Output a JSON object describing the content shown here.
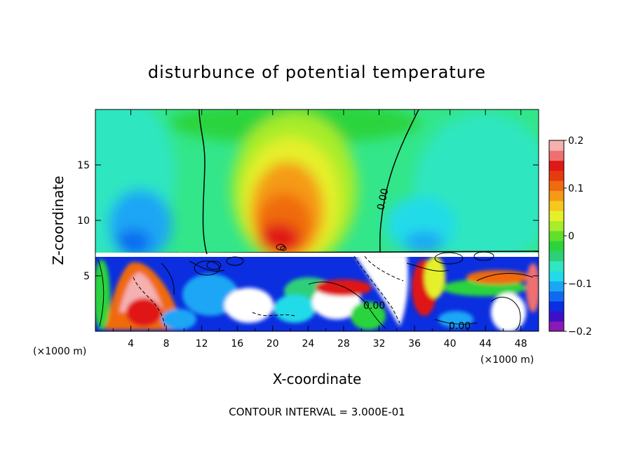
{
  "chart_data": {
    "type": "heatmap",
    "title": "disturbunce of potential temperature",
    "xlabel": "X-coordinate",
    "ylabel": "Z-coordinate",
    "x_unit_label": "(×1000 m)",
    "x_unit_label_right": "(×1000 m)",
    "xlim": [
      0,
      50
    ],
    "ylim": [
      0,
      20
    ],
    "x_ticks": [
      4,
      8,
      12,
      16,
      20,
      24,
      28,
      32,
      36,
      40,
      44,
      48
    ],
    "x_tick_labels": [
      "4",
      "8",
      "12",
      "16",
      "20",
      "24",
      "28",
      "32",
      "36",
      "40",
      "44",
      "48"
    ],
    "y_ticks": [
      5,
      10,
      15
    ],
    "y_tick_labels": [
      "5",
      "10",
      "15"
    ],
    "colorbar": {
      "range": [
        -0.2,
        0.2
      ],
      "ticks": [
        0.2,
        0.1,
        0,
        -0.1,
        -0.2
      ],
      "tick_labels": [
        "0.2",
        "0.1",
        "0",
        "−0.1",
        "−0.2"
      ],
      "colors": [
        "#8a1ab5",
        "#3d10c8",
        "#0a2ee0",
        "#0f6af0",
        "#1aa6f5",
        "#22dbe8",
        "#2ee6c0",
        "#2ecf7a",
        "#2bd43c",
        "#5fe02a",
        "#a8ec2a",
        "#e5f02a",
        "#f5c81e",
        "#f59a14",
        "#f06a10",
        "#e83a10",
        "#e01818",
        "#f07070",
        "#f5b0b0"
      ]
    },
    "contour_labels": [
      "0.00",
      "0.00",
      "0.00"
    ],
    "footer": "CONTOUR INTERVAL = 3.000E-01",
    "colors": {
      "upper_background": "#33e68a",
      "warm_core": "#f04010",
      "cool_region": "#1fc8e8"
    }
  }
}
